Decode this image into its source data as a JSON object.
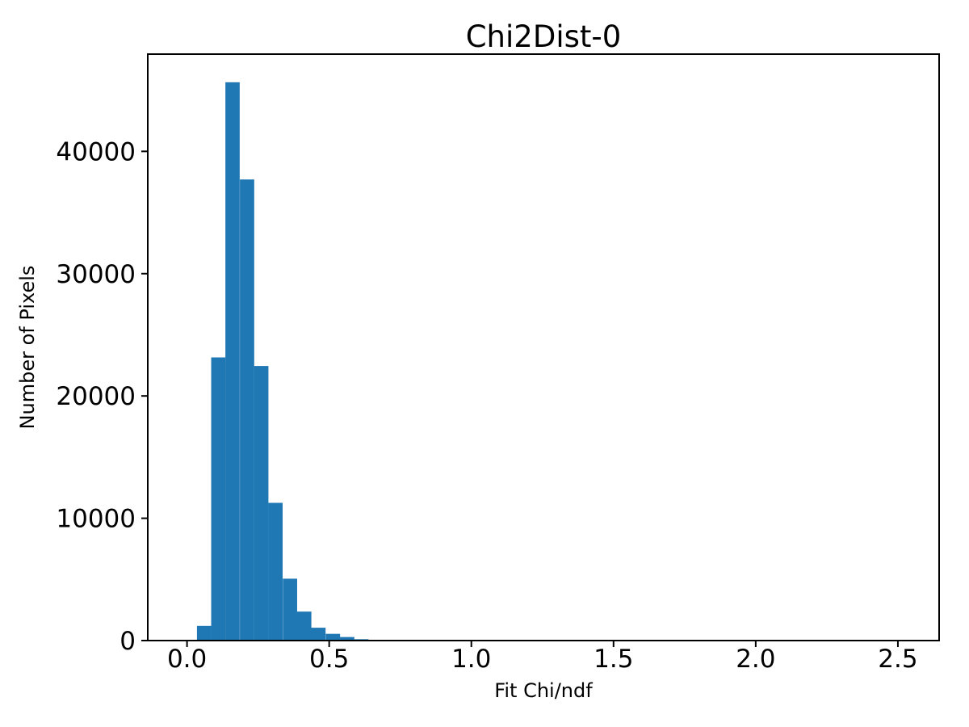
{
  "figure": {
    "background": "#ffffff"
  },
  "chart_data": {
    "type": "bar",
    "subtype": "histogram",
    "title": "Chi2Dist-0",
    "xlabel": "Fit Chi/ndf",
    "ylabel": "Number of Pixels",
    "bar_color": "#1f77b4",
    "axis_color": "#000000",
    "text_color": "#000000",
    "grid": false,
    "legend_position": "none",
    "xlim": [
      -0.138,
      2.645
    ],
    "ylim": [
      0,
      47950
    ],
    "x_ticks": [
      0.0,
      0.5,
      1.0,
      1.5,
      2.0,
      2.5
    ],
    "x_tick_labels": [
      "0.0",
      "0.5",
      "1.0",
      "1.5",
      "2.0",
      "2.5"
    ],
    "y_ticks": [
      0,
      10000,
      20000,
      30000,
      40000
    ],
    "y_tick_labels": [
      "0",
      "10000",
      "20000",
      "30000",
      "40000"
    ],
    "bin_width": 0.0503,
    "bin_starts": [
      0.035,
      0.085,
      0.135,
      0.186,
      0.236,
      0.286,
      0.337,
      0.387,
      0.437,
      0.488,
      0.538,
      0.588,
      0.639
    ],
    "counts": [
      1200,
      23150,
      45650,
      37700,
      22450,
      11260,
      5060,
      2370,
      1050,
      550,
      290,
      110,
      40
    ]
  }
}
